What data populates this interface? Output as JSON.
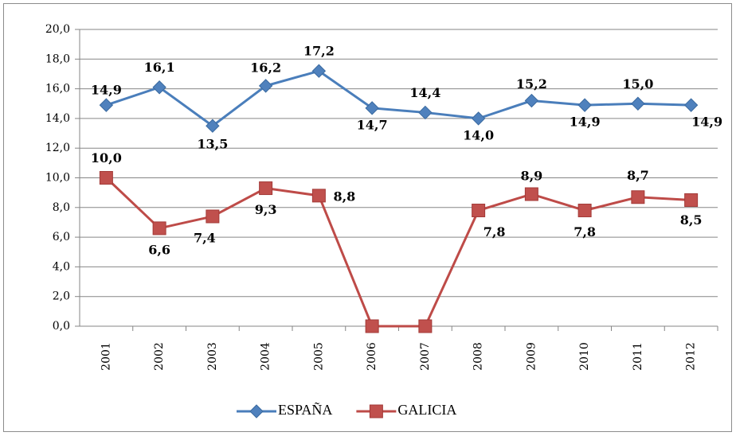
{
  "chart_data": {
    "type": "line",
    "categories": [
      "2001",
      "2002",
      "2003",
      "2004",
      "2005",
      "2006",
      "2007",
      "2008",
      "2009",
      "2010",
      "2011",
      "2012"
    ],
    "series": [
      {
        "name": "ESPAÑA",
        "color": "#4a7ebb",
        "marker": "diamond",
        "values": [
          14.9,
          16.1,
          13.5,
          16.2,
          17.2,
          14.7,
          14.4,
          14.0,
          15.2,
          14.9,
          15.0,
          14.9
        ],
        "value_labels": [
          "14,9",
          "16,1",
          "13,5",
          "16,2",
          "17,2",
          "14,7",
          "14,4",
          "14,0",
          "15,2",
          "14,9",
          "15,0",
          "14,9"
        ]
      },
      {
        "name": "GALICIA",
        "color": "#be4b48",
        "marker": "square",
        "values": [
          10.0,
          6.6,
          7.4,
          9.3,
          8.8,
          0,
          0,
          7.8,
          8.9,
          7.8,
          8.7,
          8.5
        ],
        "value_labels": [
          "10,0",
          "6,6",
          "7,4",
          "9,3",
          "8,8",
          null,
          null,
          "7,8",
          "8,9",
          "7,8",
          "8,7",
          "8,5"
        ]
      }
    ],
    "ylim": [
      0,
      20
    ],
    "yticks": [
      {
        "value": 0,
        "label": "0,0"
      },
      {
        "value": 2,
        "label": "2,0"
      },
      {
        "value": 4,
        "label": "4,0"
      },
      {
        "value": 6,
        "label": "6,0"
      },
      {
        "value": 8,
        "label": "8,0"
      },
      {
        "value": 10,
        "label": "10,0"
      },
      {
        "value": 12,
        "label": "12,0"
      },
      {
        "value": 14,
        "label": "14,0"
      },
      {
        "value": 16,
        "label": "16,0"
      },
      {
        "value": 18,
        "label": "18,0"
      },
      {
        "value": 20,
        "label": "20,0"
      }
    ],
    "grid": true,
    "legend": "bottom"
  }
}
